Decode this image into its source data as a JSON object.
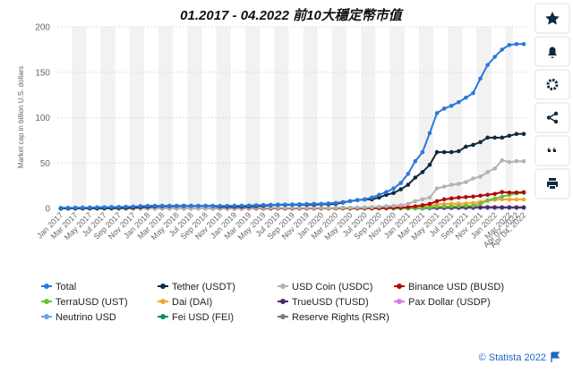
{
  "chart_data": {
    "type": "line",
    "title": "01.2017 - 04.2022  前10大穩定幣市值",
    "y_label": "Market cap in billion U.S. dollars",
    "categories": [
      "Jan 2017",
      null,
      "Mar 2017",
      null,
      "May 2017",
      null,
      "Jul 2017",
      null,
      "Sep 2017",
      null,
      "Nov 2017",
      null,
      "Jan 2018",
      null,
      "Mar 2018",
      null,
      "May 2018",
      null,
      "Jul 2018",
      null,
      "Sep 2018",
      null,
      "Nov 2018",
      null,
      "Jan 2019",
      null,
      "Mar 2019",
      null,
      "May 2019",
      null,
      "Jul 2019",
      null,
      "Sep 2019",
      null,
      "Nov 2019",
      null,
      "Jan 2020",
      null,
      "Mar 2020",
      null,
      "May 2020",
      null,
      "Jul 2020",
      null,
      "Sep 2020",
      null,
      "Nov 2020",
      null,
      "Jan 2021",
      null,
      "Mar 2021",
      null,
      "May 2021",
      null,
      "Jul 2021",
      null,
      "Sep 2021",
      null,
      "Nov 2021",
      null,
      "Jan 2022",
      null,
      "Mar 2022",
      "Apr 02, 2022",
      "Apr 04, 2022"
    ],
    "ylim": [
      0,
      200
    ],
    "yticks": [
      0,
      50,
      100,
      150,
      200
    ],
    "grid": true,
    "legend": "bottom",
    "series": [
      {
        "name": "Total",
        "color": "#2a78de",
        "values": [
          0.6,
          0.7,
          0.8,
          0.9,
          1,
          1.2,
          1.3,
          1.5,
          1.6,
          1.8,
          2,
          2.5,
          2.8,
          2.9,
          2.9,
          3,
          3,
          3.1,
          3,
          3,
          3,
          2.9,
          2.8,
          2.8,
          3,
          3,
          3.2,
          3.5,
          3.8,
          4,
          4.2,
          4.3,
          4.4,
          4.6,
          4.8,
          5,
          5,
          5.5,
          6,
          7,
          8,
          9,
          10,
          12,
          15,
          18,
          22,
          28,
          38,
          52,
          62,
          83,
          105,
          110,
          113,
          117,
          122,
          127,
          143,
          158,
          167,
          175,
          180,
          181,
          181
        ]
      },
      {
        "name": "Tether (USDT)",
        "color": "#0f2a3d",
        "values": [
          0.01,
          0.01,
          0.05,
          0.1,
          0.1,
          0.1,
          0.1,
          0.3,
          0.4,
          0.5,
          0.8,
          1.3,
          1.7,
          2.2,
          2.3,
          2.5,
          2.6,
          2.6,
          2.7,
          2.7,
          2.8,
          2.7,
          2,
          1.9,
          2,
          2,
          2.1,
          2.5,
          2.9,
          3.5,
          4,
          4,
          4.1,
          4.1,
          4.1,
          4.1,
          4.6,
          4.6,
          5,
          6.5,
          8,
          9.2,
          9.9,
          10,
          12,
          15,
          17,
          21,
          26,
          34,
          40,
          48,
          62,
          62,
          62,
          63,
          68,
          70,
          73,
          78,
          78,
          78,
          80,
          82,
          82
        ]
      },
      {
        "name": "USD Coin (USDC)",
        "color": "#b3b3b3",
        "values": [
          0,
          0,
          0,
          0,
          0,
          0,
          0,
          0,
          0,
          0,
          0,
          0,
          0,
          0,
          0,
          0,
          0,
          0,
          0,
          0,
          0,
          0.1,
          0.2,
          0.3,
          0.3,
          0.3,
          0.3,
          0.4,
          0.5,
          0.6,
          0.5,
          0.5,
          0.5,
          0.5,
          0.5,
          0.5,
          0.5,
          0.5,
          0.6,
          0.7,
          0.8,
          1,
          1.1,
          1.3,
          1.8,
          2.5,
          2.8,
          3.5,
          5,
          8,
          10,
          12,
          22,
          24,
          26,
          27,
          29,
          33,
          35,
          40,
          44,
          53,
          51,
          52,
          52
        ]
      },
      {
        "name": "Binance USD (BUSD)",
        "color": "#b00b0b",
        "values": [
          0,
          0,
          0,
          0,
          0,
          0,
          0,
          0,
          0,
          0,
          0,
          0,
          0,
          0,
          0,
          0,
          0,
          0,
          0,
          0,
          0,
          0,
          0,
          0,
          0,
          0,
          0,
          0,
          0,
          0,
          0,
          0,
          0.02,
          0.03,
          0.05,
          0.1,
          0.15,
          0.2,
          0.2,
          0.2,
          0.2,
          0.3,
          0.3,
          0.3,
          0.4,
          0.5,
          0.8,
          1,
          1.5,
          2.3,
          3.5,
          5,
          8,
          10,
          11,
          12,
          12.5,
          13,
          14,
          15,
          16,
          18,
          17.5,
          17.5,
          17.8
        ]
      },
      {
        "name": "TerraUSD (UST)",
        "color": "#6abf3c",
        "values": [
          0,
          0,
          0,
          0,
          0,
          0,
          0,
          0,
          0,
          0,
          0,
          0,
          0,
          0,
          0,
          0,
          0,
          0,
          0,
          0,
          0,
          0,
          0,
          0,
          0,
          0,
          0,
          0,
          0,
          0,
          0,
          0,
          0,
          0,
          0,
          0,
          0,
          0,
          0,
          0,
          0,
          0,
          0,
          0,
          0.05,
          0.1,
          0.1,
          0.2,
          0.2,
          0.3,
          0.6,
          1.2,
          2,
          2,
          2.2,
          2.5,
          2.9,
          3,
          5,
          9,
          11,
          13,
          15,
          16.5,
          17
        ]
      },
      {
        "name": "Dai (DAI)",
        "color": "#f4a62a",
        "values": [
          0,
          0,
          0,
          0,
          0,
          0,
          0,
          0,
          0,
          0,
          0,
          0,
          0,
          0,
          0,
          0,
          0,
          0,
          0,
          0,
          0,
          0,
          0,
          0,
          0,
          0,
          0,
          0,
          0,
          0,
          0,
          0,
          0,
          0,
          0.03,
          0.05,
          0.05,
          0.06,
          0.1,
          0.1,
          0.1,
          0.1,
          0.15,
          0.3,
          0.5,
          0.9,
          1,
          1.2,
          1.5,
          2,
          2.5,
          3,
          4.5,
          4.8,
          5,
          5.2,
          5.5,
          6,
          7,
          8.5,
          9.5,
          10,
          9.8,
          9.8,
          9.8
        ]
      },
      {
        "name": "TrueUSD (TUSD)",
        "color": "#4a2a66",
        "values": [
          0,
          0,
          0,
          0,
          0,
          0,
          0,
          0,
          0,
          0,
          0,
          0,
          0,
          0,
          0.05,
          0.1,
          0.1,
          0.1,
          0.1,
          0.1,
          0.1,
          0.15,
          0.2,
          0.2,
          0.2,
          0.2,
          0.2,
          0.2,
          0.2,
          0.2,
          0.2,
          0.2,
          0.2,
          0.2,
          0.2,
          0.2,
          0.2,
          0.2,
          0.2,
          0.2,
          0.2,
          0.3,
          0.3,
          0.3,
          0.4,
          0.4,
          0.4,
          0.4,
          0.4,
          0.5,
          0.5,
          0.6,
          0.7,
          0.8,
          0.9,
          1,
          1.2,
          1.3,
          1.3,
          1.3,
          1.3,
          1.2,
          1.2,
          1.2,
          1.2
        ]
      },
      {
        "name": "Pax Dollar (USDP)",
        "color": "#d57be2",
        "values": [
          0,
          0,
          0,
          0,
          0,
          0,
          0,
          0,
          0,
          0,
          0,
          0,
          0,
          0,
          0,
          0,
          0,
          0,
          0,
          0,
          0.05,
          0.1,
          0.1,
          0.1,
          0.1,
          0.1,
          0.1,
          0.1,
          0.1,
          0.1,
          0.1,
          0.1,
          0.1,
          0.1,
          0.1,
          0.1,
          0.2,
          0.2,
          0.2,
          0.2,
          0.2,
          0.2,
          0.2,
          0.3,
          0.3,
          0.3,
          0.4,
          0.4,
          0.5,
          0.5,
          0.5,
          0.6,
          0.7,
          0.8,
          0.9,
          0.9,
          0.9,
          0.9,
          0.9,
          0.9,
          0.9,
          0.9,
          0.9,
          0.9,
          0.9
        ]
      },
      {
        "name": "Neutrino USD",
        "color": "#6ba6e2",
        "values": [
          0,
          0,
          0,
          0,
          0,
          0,
          0,
          0,
          0,
          0,
          0,
          0,
          0,
          0,
          0,
          0,
          0,
          0,
          0,
          0,
          0,
          0,
          0,
          0,
          0,
          0,
          0,
          0,
          0,
          0,
          0,
          0,
          0,
          0,
          0,
          0,
          0,
          0,
          0,
          0,
          0,
          0,
          0,
          0,
          0.05,
          0.05,
          0.05,
          0.1,
          0.1,
          0.1,
          0.2,
          0.3,
          0.4,
          0.4,
          0.4,
          0.4,
          0.4,
          0.4,
          0.5,
          0.5,
          0.5,
          0.5,
          0.6,
          0.6,
          0.6
        ]
      },
      {
        "name": "Fei USD (FEI)",
        "color": "#0b8a72",
        "values": [
          0,
          0,
          0,
          0,
          0,
          0,
          0,
          0,
          0,
          0,
          0,
          0,
          0,
          0,
          0,
          0,
          0,
          0,
          0,
          0,
          0,
          0,
          0,
          0,
          0,
          0,
          0,
          0,
          0,
          0,
          0,
          0,
          0,
          0,
          0,
          0,
          0,
          0,
          0,
          0,
          0,
          0,
          0,
          0,
          0,
          0,
          0,
          0,
          0,
          0,
          0,
          1.2,
          0.8,
          0.6,
          0.5,
          0.5,
          0.5,
          0.5,
          0.6,
          0.6,
          0.6,
          0.6,
          0.6,
          0.6,
          0.6
        ]
      },
      {
        "name": "Reserve Rights (RSR)",
        "color": "#7b7b7b",
        "values": [
          0,
          0,
          0,
          0,
          0,
          0,
          0,
          0,
          0,
          0,
          0,
          0,
          0,
          0,
          0,
          0,
          0,
          0,
          0,
          0,
          0,
          0,
          0,
          0,
          0,
          0,
          0,
          0,
          0,
          0,
          0,
          0,
          0,
          0,
          0,
          0,
          0,
          0,
          0,
          0,
          0,
          0,
          0,
          0,
          0,
          0,
          0,
          0.1,
          0.2,
          0.3,
          0.4,
          0.4,
          0.5,
          0.5,
          0.5,
          0.5,
          0.5,
          0.5,
          0.5,
          0.5,
          0.5,
          0.5,
          0.5,
          0.5,
          0.5
        ]
      }
    ]
  },
  "footer": {
    "credit": "© Statista 2022"
  }
}
